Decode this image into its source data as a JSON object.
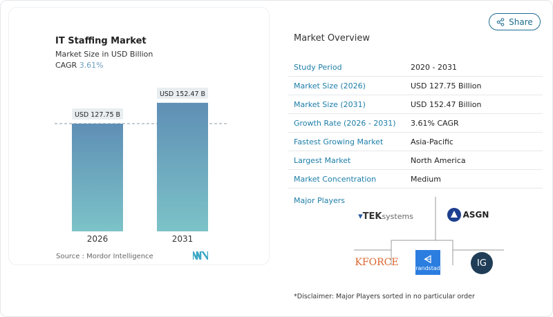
{
  "chart_data": {
    "type": "bar",
    "title": "IT Staffing Market",
    "subtitle": "Market Size in USD Billion",
    "cagr_label": "CAGR",
    "cagr_value": "3.61%",
    "categories": [
      "2026",
      "2031"
    ],
    "values": [
      127.75,
      152.47
    ],
    "data_labels": [
      "USD 127.75 B",
      "USD 152.47 B"
    ],
    "source": "Source :  Mordor Intelligence",
    "colors": {
      "bar_top": "#5f8fb5",
      "bar_bottom": "#7cc3c8"
    }
  },
  "share": {
    "label": "Share"
  },
  "overview": {
    "title": "Market Overview",
    "rows": [
      {
        "label": "Study Period",
        "value": "2020 - 2031"
      },
      {
        "label": "Market Size (2026)",
        "value": "USD 127.75 Billion"
      },
      {
        "label": "Market Size (2031)",
        "value": "USD 152.47 Billion"
      },
      {
        "label": "Growth Rate (2026 - 2031)",
        "value": "3.61% CAGR"
      },
      {
        "label": "Fastest Growing Market",
        "value": "Asia-Pacific"
      },
      {
        "label": "Largest Market",
        "value": "North America"
      },
      {
        "label": "Market Concentration",
        "value": "Medium"
      }
    ]
  },
  "players": {
    "title": "Major Players",
    "logos": [
      "TEKsystems",
      "ASGN Incorporated",
      "KFORCE",
      "randstad",
      "IG"
    ],
    "disclaimer": "*Disclaimer: Major Players sorted in no particular order"
  }
}
